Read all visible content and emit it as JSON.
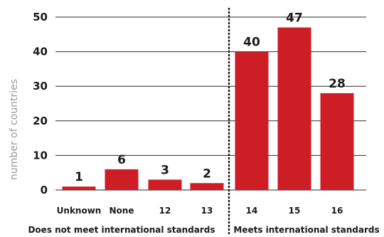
{
  "chart_data": {
    "type": "bar",
    "title": "",
    "xlabel": "",
    "ylabel": "number of countries",
    "ylim": [
      0,
      50
    ],
    "yticks": [
      0,
      10,
      20,
      30,
      40,
      50
    ],
    "grid": true,
    "categories": [
      "Unknown",
      "None",
      "12",
      "13",
      "14",
      "15",
      "16"
    ],
    "values": [
      1,
      6,
      3,
      2,
      40,
      47,
      28
    ],
    "bar_color": "#cc1e24",
    "groups": [
      {
        "label": "Does not meet international standards",
        "categories": [
          "Unknown",
          "None",
          "12",
          "13"
        ]
      },
      {
        "label": "Meets international standards",
        "categories": [
          "14",
          "15",
          "16"
        ]
      }
    ]
  }
}
